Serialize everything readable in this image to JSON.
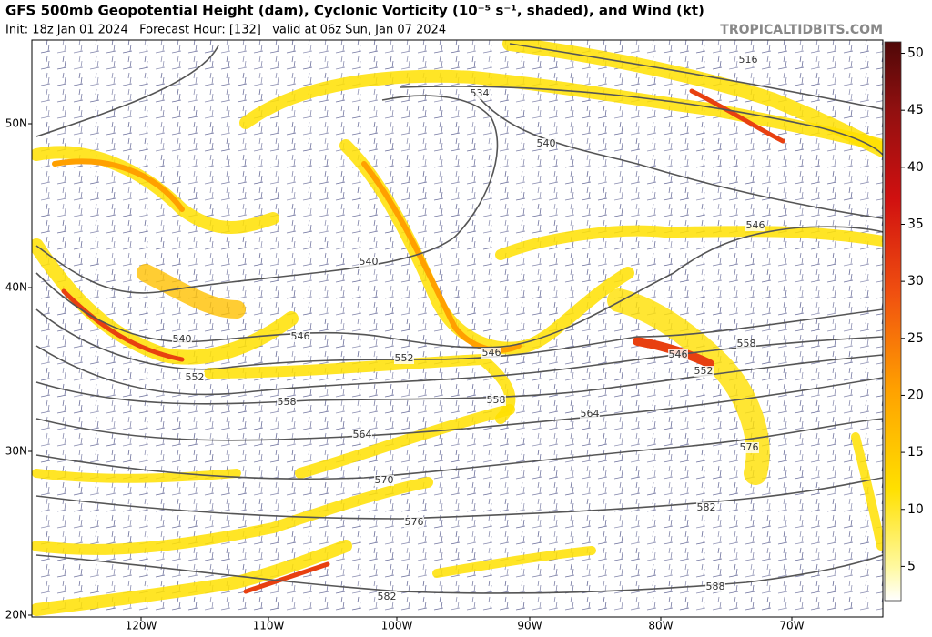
{
  "header": {
    "title": "GFS 500mb Geopotential Height (dam), Cyclonic Vorticity (10⁻⁵ s⁻¹, shaded), and Wind (kt)",
    "subtitle": "Init: 18z Jan 01 2024   Forecast Hour: [132]   valid at 06z Sun, Jan 07 2024",
    "source": "TROPICALTIDBITS.COM"
  },
  "map": {
    "lat_labels": [
      "50N",
      "40N",
      "30N",
      "20N"
    ],
    "lon_labels": [
      "120W",
      "110W",
      "100W",
      "90W",
      "80W",
      "70W"
    ],
    "contour_labels": [
      "516",
      "534",
      "540",
      "546",
      "540",
      "546",
      "540",
      "552",
      "546",
      "546",
      "552",
      "558",
      "552",
      "558",
      "558",
      "564",
      "564",
      "576",
      "570",
      "576",
      "582",
      "582",
      "588"
    ]
  },
  "colorbar": {
    "range": [
      2,
      51
    ],
    "ticks": [
      5,
      10,
      15,
      20,
      25,
      30,
      35,
      40,
      45,
      50
    ]
  }
}
